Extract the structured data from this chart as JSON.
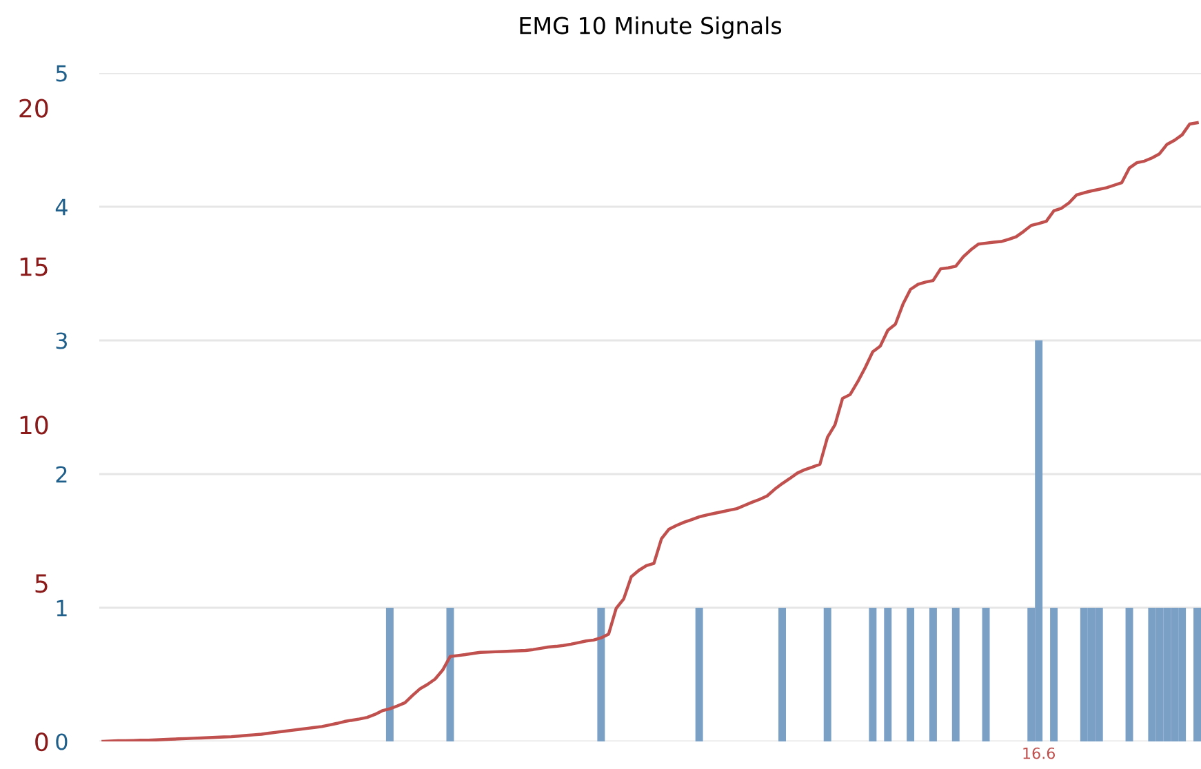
{
  "chart_data": {
    "type": "bar",
    "title": "EMG 10 Minute Signals",
    "categories": [
      null,
      null,
      null,
      null,
      null,
      null,
      null,
      null,
      null,
      null,
      null,
      null,
      null,
      null,
      null,
      null,
      null,
      null,
      null,
      null,
      null,
      null,
      null,
      null,
      null,
      null,
      null,
      null,
      null,
      null,
      null,
      null,
      null,
      null,
      null,
      null,
      null,
      null,
      null,
      null,
      null,
      null,
      null,
      null,
      null,
      null,
      null,
      null,
      null,
      null,
      null,
      null,
      null,
      null,
      null,
      null,
      null,
      null,
      null,
      null,
      null,
      null,
      null,
      null,
      null,
      null,
      null,
      null,
      null,
      null,
      null,
      null,
      null,
      null,
      null,
      null,
      null,
      null,
      null,
      null,
      null,
      null,
      null,
      null,
      null,
      null,
      null,
      null,
      null,
      null,
      null,
      null,
      null,
      null,
      null,
      null,
      null,
      null,
      null,
      null,
      null,
      null,
      null,
      null,
      null,
      null,
      null,
      null,
      null,
      null,
      null,
      null,
      null,
      null,
      null,
      null,
      null,
      null,
      null,
      null,
      null,
      null,
      null,
      null,
      "16.6",
      null,
      null,
      null,
      null,
      null,
      null,
      null,
      null,
      null,
      null,
      null,
      null,
      null,
      null,
      null,
      null,
      null,
      null,
      null,
      null,
      null
    ],
    "series": [
      {
        "color": "#7aa0c6",
        "values": [
          0,
          0,
          0,
          0,
          0,
          0,
          0,
          0,
          0,
          0,
          0,
          0,
          0,
          0,
          0,
          0,
          0,
          0,
          0,
          0,
          0,
          0,
          0,
          0,
          0,
          0,
          0,
          0,
          0,
          0,
          0,
          0,
          0,
          0,
          0,
          0,
          0,
          0,
          1,
          0,
          0,
          0,
          0,
          0,
          0,
          0,
          1,
          0,
          0,
          0,
          0,
          0,
          0,
          0,
          0,
          0,
          0,
          0,
          0,
          0,
          0,
          0,
          0,
          0,
          0,
          0,
          1,
          0,
          0,
          0,
          0,
          0,
          0,
          0,
          0,
          0,
          0,
          0,
          0,
          1,
          0,
          0,
          0,
          0,
          0,
          0,
          0,
          0,
          0,
          0,
          1,
          0,
          0,
          0,
          0,
          0,
          1,
          0,
          0,
          0,
          0,
          0,
          1,
          0,
          1,
          0,
          0,
          1,
          0,
          0,
          1,
          0,
          0,
          1,
          0,
          0,
          0,
          1,
          0,
          0,
          0,
          0,
          0,
          1,
          3,
          0,
          1,
          0,
          0,
          0,
          1,
          1,
          1,
          0,
          0,
          0,
          1,
          0,
          0,
          1,
          1,
          1,
          1,
          1,
          0,
          1
        ]
      },
      {
        "type": "line",
        "axis": "y2",
        "color": "#c0504d",
        "values": [
          0,
          0.01,
          0.02,
          0.02,
          0.03,
          0.04,
          0.04,
          0.05,
          0.06,
          0.07,
          0.08,
          0.09,
          0.1,
          0.11,
          0.12,
          0.13,
          0.14,
          0.15,
          0.17,
          0.19,
          0.21,
          0.23,
          0.26,
          0.29,
          0.32,
          0.35,
          0.38,
          0.41,
          0.44,
          0.47,
          0.52,
          0.57,
          0.63,
          0.67,
          0.71,
          0.76,
          0.85,
          0.97,
          1.03,
          1.12,
          1.22,
          1.45,
          1.66,
          1.8,
          1.97,
          2.25,
          2.68,
          2.71,
          2.74,
          2.78,
          2.81,
          2.82,
          2.83,
          2.84,
          2.85,
          2.86,
          2.87,
          2.9,
          2.94,
          2.98,
          3.0,
          3.03,
          3.07,
          3.12,
          3.17,
          3.2,
          3.27,
          3.39,
          4.2,
          4.5,
          5.2,
          5.4,
          5.55,
          5.62,
          6.4,
          6.7,
          6.82,
          6.92,
          7.0,
          7.09,
          7.15,
          7.2,
          7.25,
          7.3,
          7.35,
          7.45,
          7.55,
          7.64,
          7.75,
          7.96,
          8.14,
          8.3,
          8.47,
          8.58,
          8.66,
          8.75,
          9.6,
          10.0,
          10.83,
          10.95,
          11.35,
          11.8,
          12.3,
          12.48,
          12.98,
          13.17,
          13.8,
          14.27,
          14.43,
          14.5,
          14.55,
          14.92,
          14.95,
          15.0,
          15.3,
          15.52,
          15.7,
          15.73,
          15.76,
          15.78,
          15.85,
          15.93,
          16.1,
          16.29,
          16.35,
          16.42,
          16.75,
          16.83,
          17.0,
          17.25,
          17.32,
          17.38,
          17.43,
          17.48,
          17.56,
          17.64,
          18.1,
          18.27,
          18.32,
          18.42,
          18.55,
          18.85,
          18.98,
          19.15,
          19.49,
          19.53
        ]
      }
    ],
    "ylim": [
      0,
      5
    ],
    "yticks": [
      0,
      1,
      2,
      3,
      4,
      5
    ],
    "y2lim": [
      0,
      21.1
    ],
    "y2ticks": [
      0,
      5,
      10,
      15,
      20
    ],
    "grid": "y",
    "marker": "none",
    "line_style": "solid"
  }
}
